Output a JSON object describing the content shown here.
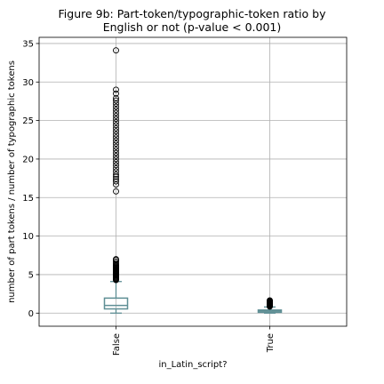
{
  "chart_data": {
    "type": "boxplot",
    "title_line1": "Figure 9b: Part-token/typographic-token ratio by",
    "title_line2": "English or not (p-value < 0.001)",
    "xlabel": "in_Latin_script?",
    "ylabel": "number of part tokens / number of typographic tokens",
    "ylim": [
      -1.7,
      35.8
    ],
    "yticks": [
      0,
      5,
      10,
      15,
      20,
      25,
      30,
      35
    ],
    "grid": true,
    "colors": {
      "box": "#5f8f95",
      "median": "#5f8f95",
      "grid": "#b0b0b0",
      "flier": "#000000"
    },
    "categories": [
      "False",
      "True"
    ],
    "boxes": [
      {
        "category": "False",
        "whisker_low": 0.0,
        "q1": 0.55,
        "median": 1.0,
        "q3": 1.95,
        "whisker_high": 4.1,
        "fliers": [
          4.3,
          4.4,
          4.5,
          4.6,
          4.7,
          4.8,
          4.9,
          5.0,
          5.1,
          5.2,
          5.3,
          5.4,
          5.5,
          5.6,
          5.7,
          5.8,
          5.9,
          6.0,
          6.1,
          6.2,
          6.3,
          6.5,
          6.7,
          6.9,
          7.0,
          15.8,
          16.7,
          17.1,
          17.4,
          17.7,
          18.0,
          18.4,
          18.8,
          19.2,
          19.6,
          20.0,
          20.4,
          20.8,
          21.2,
          21.6,
          22.0,
          22.4,
          22.8,
          23.2,
          23.6,
          24.0,
          24.4,
          24.8,
          25.2,
          25.6,
          26.0,
          26.4,
          26.8,
          27.2,
          27.6,
          27.9,
          28.5,
          29.0,
          34.1
        ]
      },
      {
        "category": "True",
        "whisker_low": 0.0,
        "q1": 0.1,
        "median": 0.25,
        "q3": 0.4,
        "whisker_high": 0.8,
        "fliers": [
          0.85,
          0.9,
          0.95,
          1.0,
          1.05,
          1.1,
          1.15,
          1.2,
          1.25,
          1.3,
          1.35,
          1.4,
          1.45,
          1.5,
          1.55,
          1.6,
          1.65
        ]
      }
    ]
  }
}
